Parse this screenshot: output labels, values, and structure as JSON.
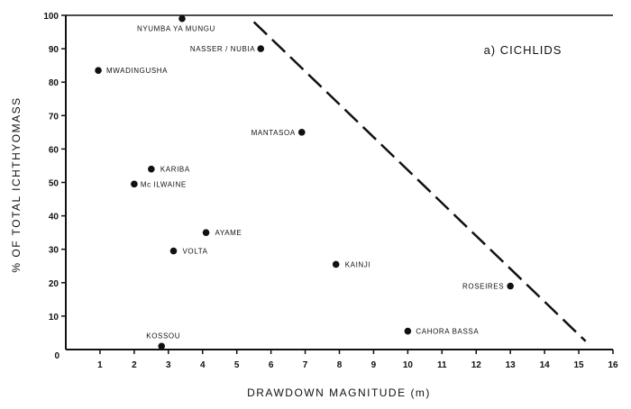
{
  "chart_data": {
    "type": "scatter",
    "title": "a) CICHLIDS",
    "xlabel": "DRAWDOWN MAGNITUDE (m)",
    "ylabel": "% OF TOTAL ICHTHYOMASS",
    "xlim": [
      0,
      16
    ],
    "ylim": [
      0,
      100
    ],
    "xticks": [
      0,
      1,
      2,
      3,
      4,
      5,
      6,
      7,
      8,
      9,
      10,
      11,
      12,
      13,
      14,
      15,
      16
    ],
    "yticks": [
      0,
      10,
      20,
      30,
      40,
      50,
      60,
      70,
      80,
      90,
      100
    ],
    "grid": false,
    "points": [
      {
        "label": "NYUMBA YA MUNGU",
        "x": 3.4,
        "y": 99
      },
      {
        "label": "NASSER / NUBIA",
        "x": 5.7,
        "y": 90
      },
      {
        "label": "MWADINGUSHA",
        "x": 0.95,
        "y": 83.5
      },
      {
        "label": "MANTASOA",
        "x": 6.9,
        "y": 65
      },
      {
        "label": "KARIBA",
        "x": 2.5,
        "y": 54
      },
      {
        "label": "Mc ILWAINE",
        "x": 2.0,
        "y": 49.5
      },
      {
        "label": "AYAME",
        "x": 4.1,
        "y": 35
      },
      {
        "label": "VOLTA",
        "x": 3.15,
        "y": 29.5
      },
      {
        "label": "KAINJI",
        "x": 7.9,
        "y": 25.5
      },
      {
        "label": "ROSEIRES",
        "x": 13.0,
        "y": 19
      },
      {
        "label": "CAHORA BASSA",
        "x": 10.0,
        "y": 5.5
      },
      {
        "label": "KOSSOU",
        "x": 2.8,
        "y": 1
      }
    ],
    "boundary_line": {
      "style": "dashed",
      "from": [
        5.5,
        98
      ],
      "to": [
        15.2,
        2.5
      ]
    }
  }
}
